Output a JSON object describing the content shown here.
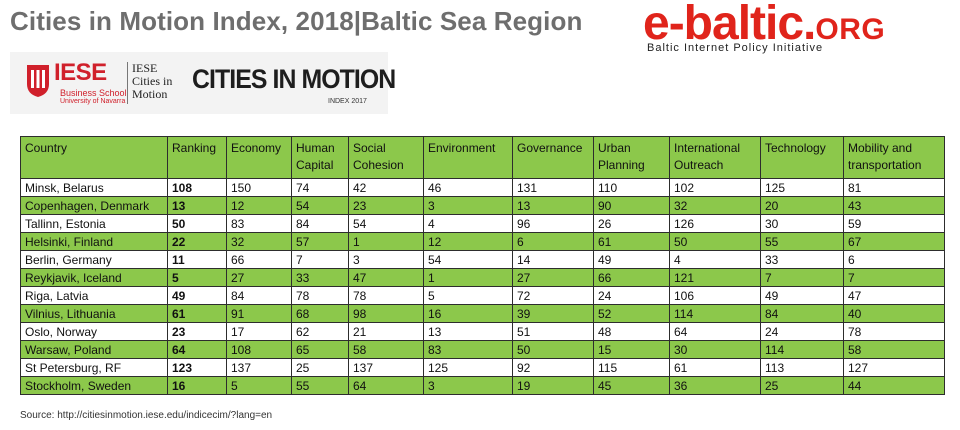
{
  "header": {
    "title": "Cities in Motion Index, 2018|Baltic Sea Region"
  },
  "brand": {
    "name_main": "e-baltic.",
    "name_tld": "ORG",
    "tagline": "Baltic Internet Policy Initiative"
  },
  "logo": {
    "iese": "IESE",
    "iese_sub": "Business School",
    "iese_uni": "University of Navarra",
    "cim_small": [
      "IESE",
      "Cities in",
      "Motion"
    ],
    "cim_big": "CITIES IN MOTION",
    "cim_index": "INDEX 2017"
  },
  "colors": {
    "accent_green": "#8cc84b",
    "brand_red": "#e0241b"
  },
  "table": {
    "columns": [
      "Country",
      "Ranking",
      "Economy",
      "Human Capital",
      "Social Cohesion",
      "Environment",
      "Governance",
      "Urban Planning",
      "International Outreach",
      "Technology",
      "Mobility and transportation"
    ],
    "rows": [
      [
        "Minsk, Belarus",
        "108",
        "150",
        "74",
        "42",
        "46",
        "131",
        "110",
        "102",
        "125",
        "81"
      ],
      [
        "Copenhagen, Denmark",
        "13",
        "12",
        "54",
        "23",
        "3",
        "13",
        "90",
        "32",
        "20",
        "43"
      ],
      [
        "Tallinn, Estonia",
        "50",
        "83",
        "84",
        "54",
        "4",
        "96",
        "26",
        "126",
        "30",
        "59"
      ],
      [
        "Helsinki, Finland",
        "22",
        "32",
        "57",
        "1",
        "12",
        "6",
        "61",
        "50",
        "55",
        "67"
      ],
      [
        "Berlin, Germany",
        "11",
        "66",
        "7",
        "3",
        "54",
        "14",
        "49",
        "4",
        "33",
        "6"
      ],
      [
        "Reykjavik, Iceland",
        "5",
        "27",
        "33",
        "47",
        "1",
        "27",
        "66",
        "121",
        "7",
        "7"
      ],
      [
        "Riga, Latvia",
        "49",
        "84",
        "78",
        "78",
        "5",
        "72",
        "24",
        "106",
        "49",
        "47"
      ],
      [
        "Vilnius, Lithuania",
        "61",
        "91",
        "68",
        "98",
        "16",
        "39",
        "52",
        "114",
        "84",
        "40"
      ],
      [
        "Oslo, Norway",
        "23",
        "17",
        "62",
        "21",
        "13",
        "51",
        "48",
        "64",
        "24",
        "78"
      ],
      [
        "Warsaw, Poland",
        "64",
        "108",
        "65",
        "58",
        "83",
        "50",
        "15",
        "30",
        "114",
        "58"
      ],
      [
        "St Petersburg, RF",
        "123",
        "137",
        "25",
        "137",
        "125",
        "92",
        "115",
        "61",
        "113",
        "127"
      ],
      [
        "Stockholm, Sweden",
        "16",
        "5",
        "55",
        "64",
        "3",
        "19",
        "45",
        "36",
        "25",
        "44"
      ]
    ]
  },
  "footer": {
    "source": "Source: http://citiesinmotion.iese.edu/indicecim/?lang=en"
  }
}
